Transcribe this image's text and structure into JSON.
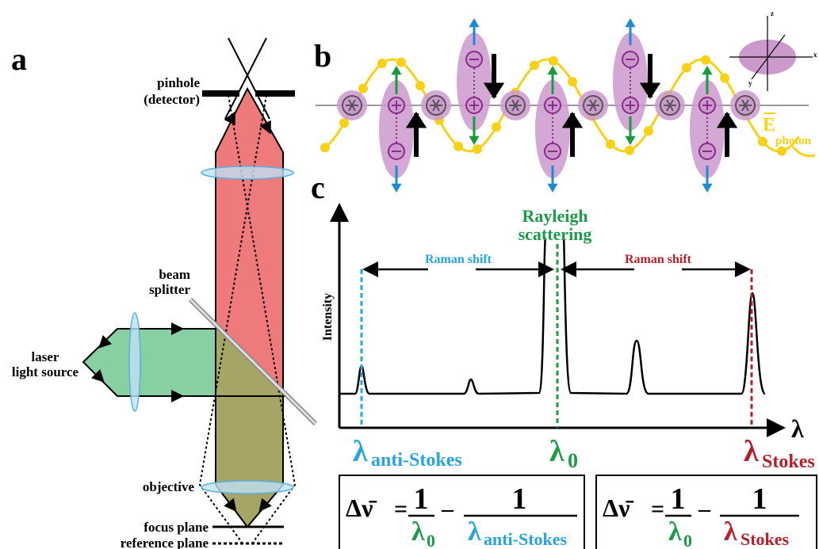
{
  "panel_a": {
    "label": "a",
    "pinhole": "pinhole",
    "detector": "(detector)",
    "beam": "beam",
    "splitter": "splitter",
    "laser": "laser",
    "light_source": "light source",
    "objective": "objective",
    "focus_plane": "focus plane",
    "reference_plane": "reference plane"
  },
  "panel_b": {
    "label": "b",
    "field_symbol": "E",
    "field_subscript": "photon",
    "axis_z": "z",
    "axis_y": "y",
    "axis_x": "x"
  },
  "panel_c": {
    "label": "c",
    "rayleigh": "Rayleigh",
    "scattering": "scattering",
    "raman_shift_left": "Raman shift",
    "raman_shift_right": "Raman shift",
    "y_axis": "Intensity",
    "x_axis": "λ",
    "lambda_anti_stokes": {
      "symbol": "λ",
      "subscript": "anti-Stokes"
    },
    "lambda_zero": {
      "symbol": "λ",
      "subscript": "0"
    },
    "lambda_stokes": {
      "symbol": "λ",
      "subscript": "Stokes"
    }
  },
  "formulas": [
    {
      "lhs": "Δν̄",
      "equals": "=",
      "numerator_1": "1",
      "denominator_1": "λ",
      "denominator_1_sub": "0",
      "minus": "–",
      "numerator_2": "1",
      "denominator_2": "λ",
      "denominator_2_sub": "anti-Stokes"
    },
    {
      "lhs": "Δν̄",
      "equals": "=",
      "numerator_1": "1",
      "denominator_1": "λ",
      "denominator_1_sub": "0",
      "minus": "–",
      "numerator_2": "1",
      "denominator_2": "λ",
      "denominator_2_sub": "Stokes"
    }
  ]
}
